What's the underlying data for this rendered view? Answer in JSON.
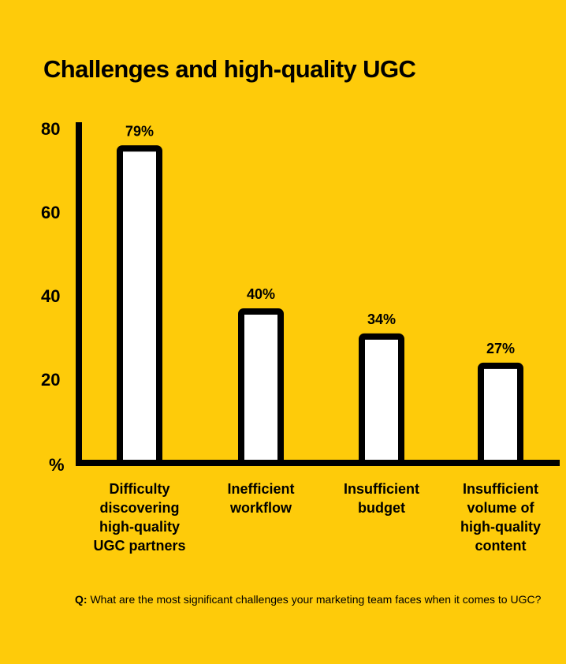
{
  "colors": {
    "background": "#FECB0A",
    "bar_fill": "#FFFFFF",
    "bar_stroke": "#000000",
    "axis": "#000000"
  },
  "chart_data": {
    "type": "bar",
    "title": "Challenges and high-quality UGC",
    "xlabel": "",
    "ylabel": "%",
    "ylim": [
      0,
      80
    ],
    "yticks": [
      "80",
      "60",
      "40",
      "20"
    ],
    "y_unit_label": "%",
    "grid": false,
    "categories": [
      [
        "Difficulty",
        "discovering",
        "high-quality",
        "UGC partners"
      ],
      [
        "Inefficient",
        "workflow"
      ],
      [
        "Insufficient",
        "budget"
      ],
      [
        "Insufficient",
        "volume of",
        "high-quality",
        "content"
      ]
    ],
    "values": [
      79,
      40,
      34,
      27
    ],
    "data_labels": [
      "79%",
      "40%",
      "34%",
      "27%"
    ]
  },
  "question": {
    "prefix": "Q:",
    "text": " What are the most significant challenges your marketing team faces when it comes to UGC?"
  }
}
